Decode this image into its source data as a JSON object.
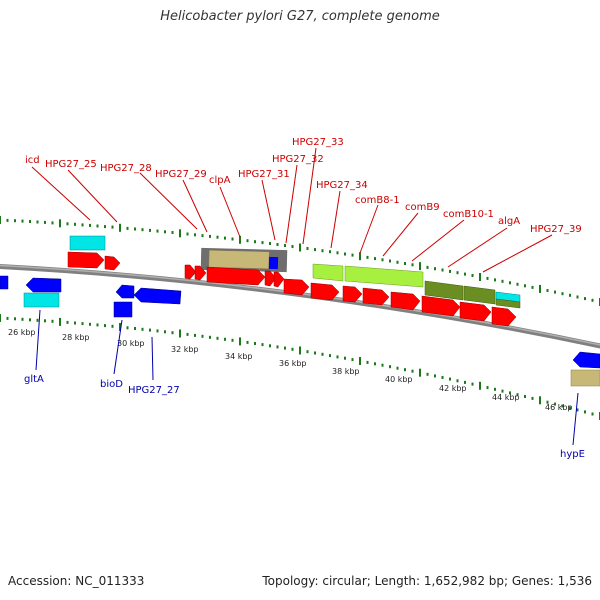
{
  "title": "Helicobacter pylori G27, complete genome",
  "footer": {
    "accession": "Accession: NC_011333",
    "topology": "Topology: circular; Length: 1,652,982 bp; Genes: 1,536"
  },
  "colors": {
    "forward_gene": "#ff0000",
    "reverse_gene": "#0000ff",
    "cyan_gene": "#00e5e5",
    "khaki_gene": "#c8b878",
    "lime_gene": "#a8f040",
    "olive_gene": "#6b8e23",
    "tick": "#1a7a1a",
    "backbone": "#808080",
    "top_label": "#cc0000",
    "bottom_label": "#0000aa"
  },
  "scale_labels": [
    "26 kbp",
    "28 kbp",
    "30 kbp",
    "32 kbp",
    "34 kbp",
    "36 kbp",
    "38 kbp",
    "40 kbp",
    "42 kbp",
    "44 kbp",
    "46 kbp"
  ],
  "top_labels": [
    "icd",
    "HPG27_25",
    "HPG27_28",
    "HPG27_29",
    "clpA",
    "HPG27_31",
    "HPG27_32",
    "HPG27_33",
    "HPG27_34",
    "comB8-1",
    "comB9",
    "comB10-1",
    "algA",
    "HPG27_39"
  ],
  "bottom_labels": [
    "gltA",
    "bioD",
    "HPG27_27",
    "hypE"
  ]
}
